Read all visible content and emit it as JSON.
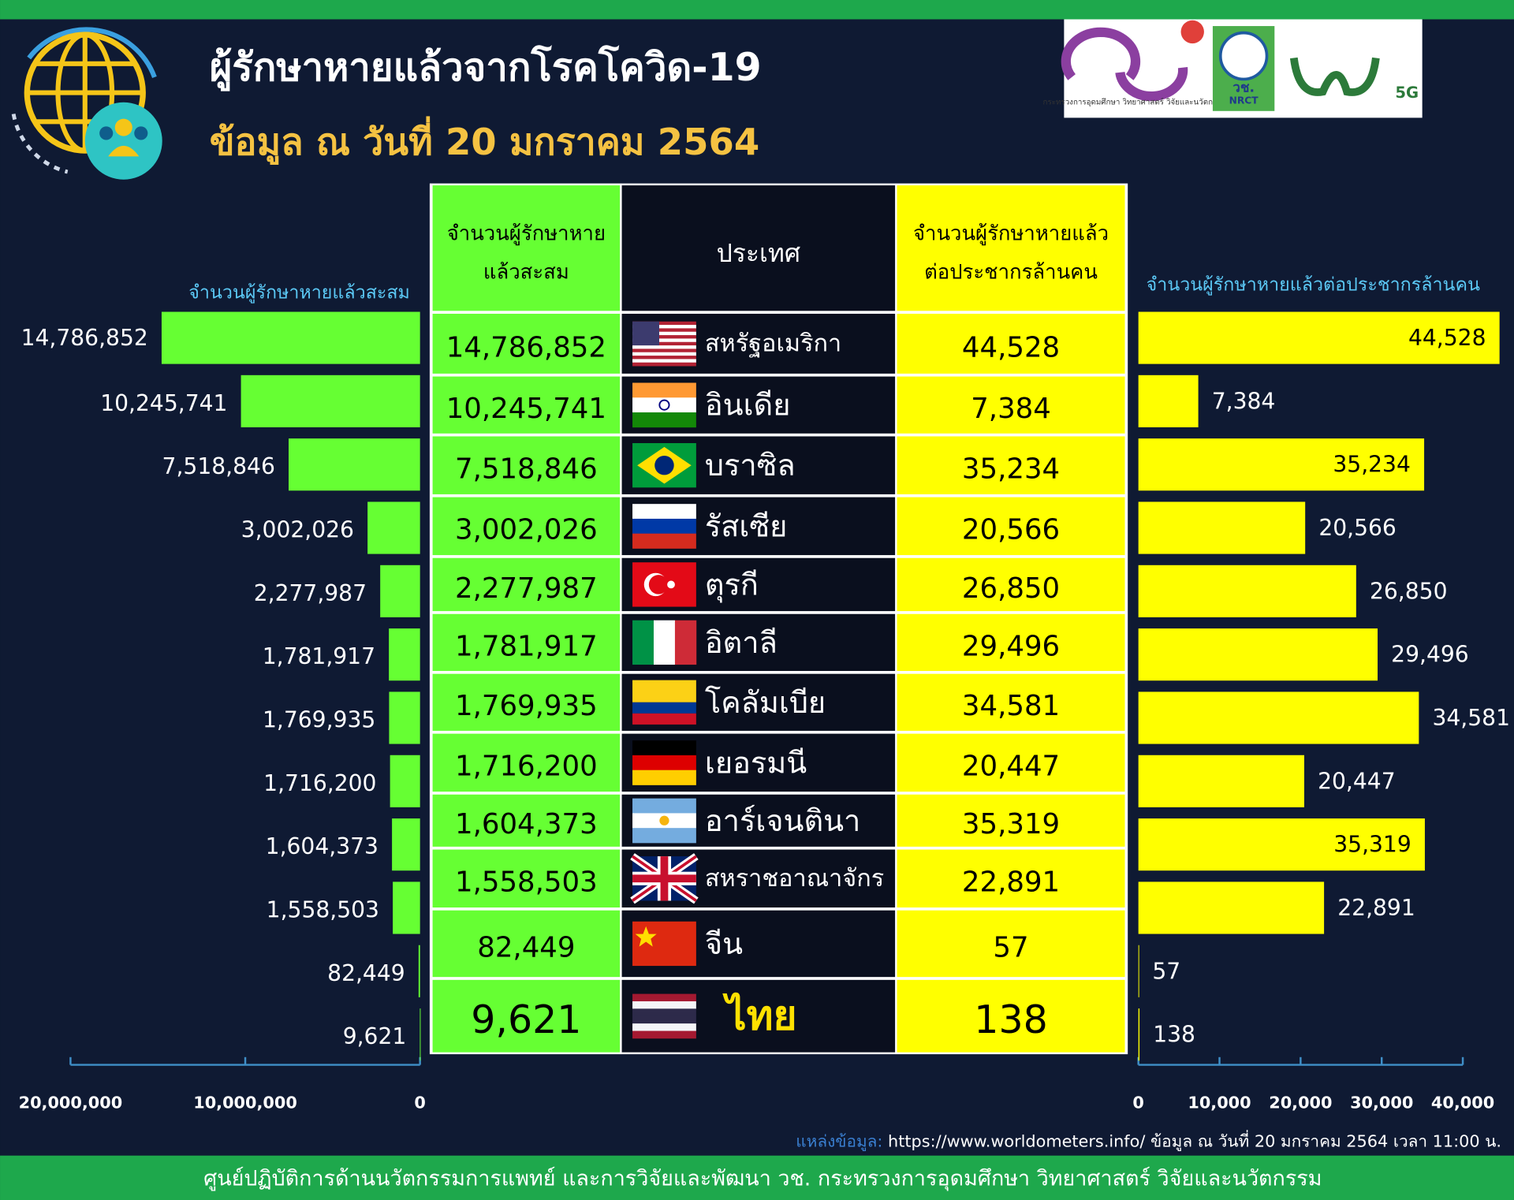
{
  "header": {
    "title": "ผู้รักษาหายแล้วจากโรคโควิด-19",
    "subtitle": "ข้อมูล ณ วันที่ 20 มกราคม 2564"
  },
  "logos": {
    "ministry": "กระทรวงการอุดมศึกษา วิทยาศาสตร์ วิจัยและนวัตกรรม",
    "nrct_thai": "วช.",
    "nrct": "NRCT",
    "fiveg": "5G"
  },
  "table": {
    "columns": [
      [
        "จำนวนผู้รักษาหาย",
        "แล้วสะสม"
      ],
      [
        "ประเทศ"
      ],
      [
        "จำนวนผู้รักษาหายแล้ว",
        "ต่อประชากรล้านคน"
      ]
    ],
    "rows": [
      [
        "14,786,852",
        "สหรัฐอเมริกา",
        "44,528"
      ],
      [
        "10,245,741",
        "อินเดีย",
        "7,384"
      ],
      [
        "7,518,846",
        "บราซิล",
        "35,234"
      ],
      [
        "3,002,026",
        "รัสเซีย",
        "20,566"
      ],
      [
        "2,277,987",
        "ตุรกี",
        "26,850"
      ],
      [
        "1,781,917",
        "อิตาลี",
        "29,496"
      ],
      [
        "1,769,935",
        "โคลัมเบีย",
        "34,581"
      ],
      [
        "1,716,200",
        "เยอรมนี",
        "20,447"
      ],
      [
        "1,604,373",
        "อาร์เจนตินา",
        "35,319"
      ],
      [
        "1,558,503",
        "สหราชอาณาจักร",
        "22,891"
      ],
      [
        "82,449",
        "จีน",
        "57"
      ],
      [
        "9,621",
        "ไทย",
        "138"
      ]
    ]
  },
  "chart_data": [
    {
      "type": "bar",
      "orientation": "horizontal",
      "title": "จำนวนผู้รักษาหายแล้วสะสม",
      "color": "#66ff33",
      "values": [
        14786852,
        10245741,
        7518846,
        3002026,
        2277987,
        1781917,
        1769935,
        1716200,
        1604373,
        1558503,
        82449,
        9621
      ],
      "value_labels": [
        "14,786,852",
        "10,245,741",
        "7,518,846",
        "3,002,026",
        "2,277,987",
        "1,781,917",
        "1,769,935",
        "1,716,200",
        "1,604,373",
        "1,558,503",
        "82,449",
        "9,621"
      ],
      "xlim": [
        20000000,
        0
      ],
      "xticks": [
        {
          "value": 20000000,
          "label": "20,000,000"
        },
        {
          "value": 10000000,
          "label": "10,000,000"
        },
        0
      ]
    },
    {
      "type": "bar",
      "orientation": "horizontal",
      "title": "จำนวนผู้รักษาหายแล้วต่อประชากรล้านคน",
      "color": "#ffff00",
      "values": [
        44528,
        7384,
        35234,
        20566,
        26850,
        29496,
        34581,
        20447,
        35319,
        22891,
        57,
        138
      ],
      "value_labels": [
        "44,528",
        "7,384",
        "35,234",
        "20,566",
        "26,850",
        "29,496",
        "34,581",
        "20,447",
        "35,319",
        "22,891",
        "57",
        "138"
      ],
      "xlim": [
        0,
        40000
      ],
      "xticks": [
        0,
        {
          "value": 10000,
          "label": "10,000"
        },
        {
          "value": 20000,
          "label": "20,000"
        },
        {
          "value": 30000,
          "label": "30,000"
        },
        {
          "value": 40000,
          "label": "40,000"
        }
      ]
    }
  ],
  "footer": {
    "source_label": "แหล่งข้อมูล:",
    "source_url": "https://www.worldometers.info/",
    "source_date": "ข้อมูล ณ วันที่ 20 มกราคม 2564 เวลา 11:00 น.",
    "organization": "ศูนย์ปฏิบัติการด้านนวัตกรรมการแพทย์ และการวิจัยและพัฒนา  วช.   กระทรวงการอุดมศึกษา วิทยาศาสตร์ วิจัยและนวัตกรรม"
  }
}
